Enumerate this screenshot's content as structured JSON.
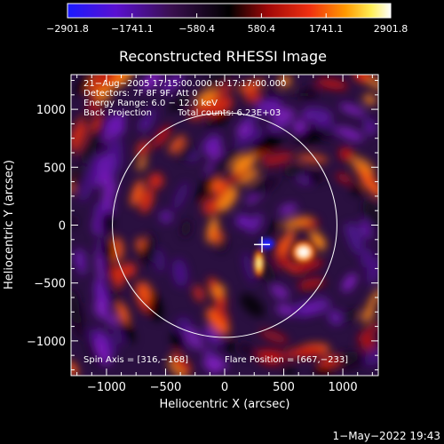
{
  "chart_data": {
    "type": "heatmap",
    "title": "Reconstructed RHESSI Image",
    "xlabel": "Heliocentric X (arcsec)",
    "ylabel": "Heliocentric Y (arcsec)",
    "xlim": [
      -1300,
      1300
    ],
    "ylim": [
      -1300,
      1300
    ],
    "x_ticks": [
      -1000,
      -500,
      0,
      500,
      1000
    ],
    "y_ticks": [
      1000,
      500,
      0,
      -500,
      -1000
    ],
    "x_tick_labels": [
      "−1000",
      "−500",
      "0",
      "500",
      "1000"
    ],
    "y_tick_labels": [
      "1000",
      "500",
      "0",
      "−500",
      "−1000"
    ],
    "colorbar": {
      "range": [
        -2901.8,
        2901.8
      ],
      "ticks": [
        -2901.8,
        -1741.1,
        -580.4,
        580.4,
        1741.1,
        2901.8
      ],
      "tick_labels": [
        "−2901.8",
        "−1741.1",
        "−580.4",
        "580.4",
        "1741.1",
        "2901.8"
      ],
      "colors": [
        "#1a1aff",
        "#6600cc",
        "#301040",
        "#000000",
        "#c01010",
        "#ff6600",
        "#ffdd33",
        "#ffffff"
      ]
    },
    "annotations": [
      "21−Aug−2005 17:15:00.000 to 17:17:00.000",
      "Detectors: 7F 8F 9F, Att 0",
      "Energy Range: 6.0 − 12.0 keV",
      "Back Projection",
      "Total counts: 6.23E+03",
      "Spin Axis = [316,−168]",
      "Flare Position = [667,−233]"
    ],
    "solar_limb_radius": 950,
    "spin_axis": [
      316,
      -168
    ],
    "flare_position": [
      667,
      -233
    ],
    "grid": false
  },
  "footer": {
    "timestamp": "1−May−2022 19:43"
  }
}
